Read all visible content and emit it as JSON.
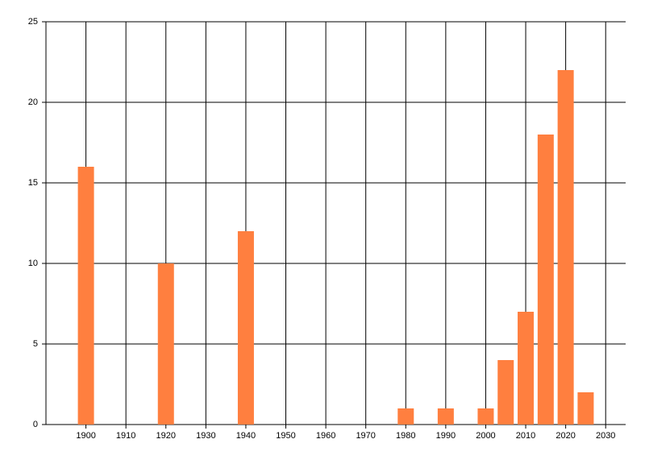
{
  "chart_data": {
    "type": "bar",
    "x": [
      1900,
      1920,
      1940,
      1980,
      1990,
      2000,
      2005,
      2010,
      2015,
      2020,
      2025
    ],
    "values": [
      16,
      10,
      12,
      1,
      1,
      1,
      4,
      7,
      18,
      22,
      2
    ],
    "color": "#ff7f3f",
    "xlim": [
      1890,
      2035
    ],
    "xticks": [
      1900,
      1910,
      1920,
      1930,
      1940,
      1950,
      1960,
      1970,
      1980,
      1990,
      2000,
      2010,
      2020,
      2030
    ],
    "ylim": [
      0,
      25
    ],
    "yticks": [
      0,
      5,
      10,
      15,
      20,
      25
    ],
    "grid": true
  }
}
